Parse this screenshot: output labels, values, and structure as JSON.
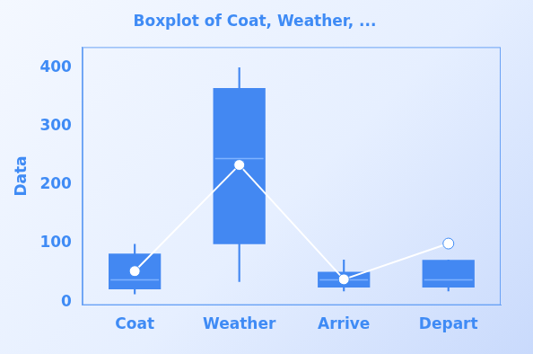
{
  "chart_data": {
    "type": "box",
    "title": "Boxplot of Coat, Weather, ...",
    "y_label": "Data",
    "categories": [
      "Coat",
      "Weather",
      "Arrive",
      "Depart"
    ],
    "min": [
      14,
      35,
      19,
      19
    ],
    "q1": [
      22,
      99,
      25,
      25
    ],
    "median": [
      38,
      245,
      38,
      38
    ],
    "q3": [
      83,
      365,
      52,
      72
    ],
    "max": [
      99,
      400,
      72,
      72
    ],
    "mean": [
      53,
      234,
      39,
      100
    ],
    "color": "#4388f2",
    "ylim": [
      -5,
      435
    ],
    "yticks": [
      0,
      100,
      200,
      300,
      400
    ],
    "grid": false
  }
}
